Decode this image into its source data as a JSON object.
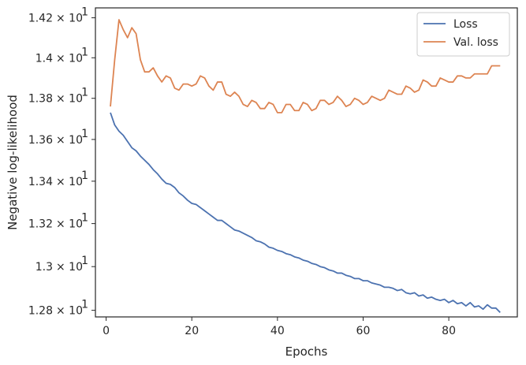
{
  "chart_data": {
    "type": "line",
    "xlabel": "Epochs",
    "ylabel": "Negative log-likelihood",
    "xlim": [
      -2.5,
      96
    ],
    "ylim": [
      12.77,
      14.25
    ],
    "y_scale": "log",
    "grid": false,
    "legend_position": "top-right",
    "x_ticks": [
      {
        "value": 0,
        "label": "0"
      },
      {
        "value": 20,
        "label": "20"
      },
      {
        "value": 40,
        "label": "40"
      },
      {
        "value": 60,
        "label": "60"
      },
      {
        "value": 80,
        "label": "80"
      }
    ],
    "y_ticks": [
      {
        "value": 12.8,
        "mantissa": "1.28",
        "label_suffix": "× 10",
        "exponent": "1"
      },
      {
        "value": 13.0,
        "mantissa": "1.3",
        "label_suffix": "× 10",
        "exponent": "1"
      },
      {
        "value": 13.2,
        "mantissa": "1.32",
        "label_suffix": "× 10",
        "exponent": "1"
      },
      {
        "value": 13.4,
        "mantissa": "1.34",
        "label_suffix": "× 10",
        "exponent": "1"
      },
      {
        "value": 13.6,
        "mantissa": "1.36",
        "label_suffix": "× 10",
        "exponent": "1"
      },
      {
        "value": 13.8,
        "mantissa": "1.38",
        "label_suffix": "× 10",
        "exponent": "1"
      },
      {
        "value": 14.0,
        "mantissa": "1.4",
        "label_suffix": "× 10",
        "exponent": "1"
      },
      {
        "value": 14.2,
        "mantissa": "1.42",
        "label_suffix": "× 10",
        "exponent": "1"
      }
    ],
    "x": [
      1,
      2,
      3,
      4,
      5,
      6,
      7,
      8,
      9,
      10,
      11,
      12,
      13,
      14,
      15,
      16,
      17,
      18,
      19,
      20,
      21,
      22,
      23,
      24,
      25,
      26,
      27,
      28,
      29,
      30,
      31,
      32,
      33,
      34,
      35,
      36,
      37,
      38,
      39,
      40,
      41,
      42,
      43,
      44,
      45,
      46,
      47,
      48,
      49,
      50,
      51,
      52,
      53,
      54,
      55,
      56,
      57,
      58,
      59,
      60,
      61,
      62,
      63,
      64,
      65,
      66,
      67,
      68,
      69,
      70,
      71,
      72,
      73,
      74,
      75,
      76,
      77,
      78,
      79,
      80,
      81,
      82,
      83,
      84,
      85,
      86,
      87,
      88,
      89,
      90,
      91,
      92
    ],
    "series": [
      {
        "name": "Loss",
        "color": "#4c72b0",
        "values": [
          13.73,
          13.67,
          13.64,
          13.62,
          13.59,
          13.56,
          13.545,
          13.52,
          13.5,
          13.48,
          13.455,
          13.435,
          13.41,
          13.39,
          13.385,
          13.37,
          13.345,
          13.33,
          13.31,
          13.295,
          13.29,
          13.275,
          13.26,
          13.245,
          13.23,
          13.215,
          13.215,
          13.2,
          13.185,
          13.17,
          13.165,
          13.155,
          13.145,
          13.135,
          13.12,
          13.115,
          13.105,
          13.09,
          13.085,
          13.075,
          13.07,
          13.06,
          13.055,
          13.045,
          13.04,
          13.03,
          13.025,
          13.015,
          13.01,
          13.0,
          12.995,
          12.985,
          12.98,
          12.97,
          12.97,
          12.96,
          12.955,
          12.945,
          12.945,
          12.935,
          12.935,
          12.925,
          12.92,
          12.915,
          12.905,
          12.905,
          12.9,
          12.89,
          12.895,
          12.88,
          12.875,
          12.88,
          12.865,
          12.87,
          12.855,
          12.86,
          12.85,
          12.845,
          12.85,
          12.835,
          12.845,
          12.83,
          12.835,
          12.82,
          12.835,
          12.815,
          12.82,
          12.805,
          12.825,
          12.81,
          12.81,
          12.79
        ]
      },
      {
        "name": "Val. loss",
        "color": "#dd8452",
        "values": [
          13.76,
          13.99,
          14.19,
          14.14,
          14.1,
          14.15,
          14.12,
          13.99,
          13.93,
          13.93,
          13.95,
          13.91,
          13.88,
          13.91,
          13.9,
          13.85,
          13.84,
          13.87,
          13.87,
          13.86,
          13.87,
          13.91,
          13.9,
          13.86,
          13.84,
          13.88,
          13.88,
          13.82,
          13.81,
          13.83,
          13.81,
          13.77,
          13.76,
          13.79,
          13.78,
          13.75,
          13.75,
          13.78,
          13.77,
          13.73,
          13.73,
          13.77,
          13.77,
          13.74,
          13.74,
          13.78,
          13.77,
          13.74,
          13.75,
          13.79,
          13.79,
          13.77,
          13.78,
          13.81,
          13.79,
          13.76,
          13.77,
          13.8,
          13.79,
          13.77,
          13.78,
          13.81,
          13.8,
          13.79,
          13.8,
          13.84,
          13.83,
          13.82,
          13.82,
          13.86,
          13.85,
          13.83,
          13.84,
          13.89,
          13.88,
          13.86,
          13.86,
          13.9,
          13.89,
          13.88,
          13.88,
          13.91,
          13.91,
          13.9,
          13.9,
          13.92,
          13.92,
          13.92,
          13.92,
          13.96,
          13.96,
          13.96
        ]
      }
    ]
  }
}
